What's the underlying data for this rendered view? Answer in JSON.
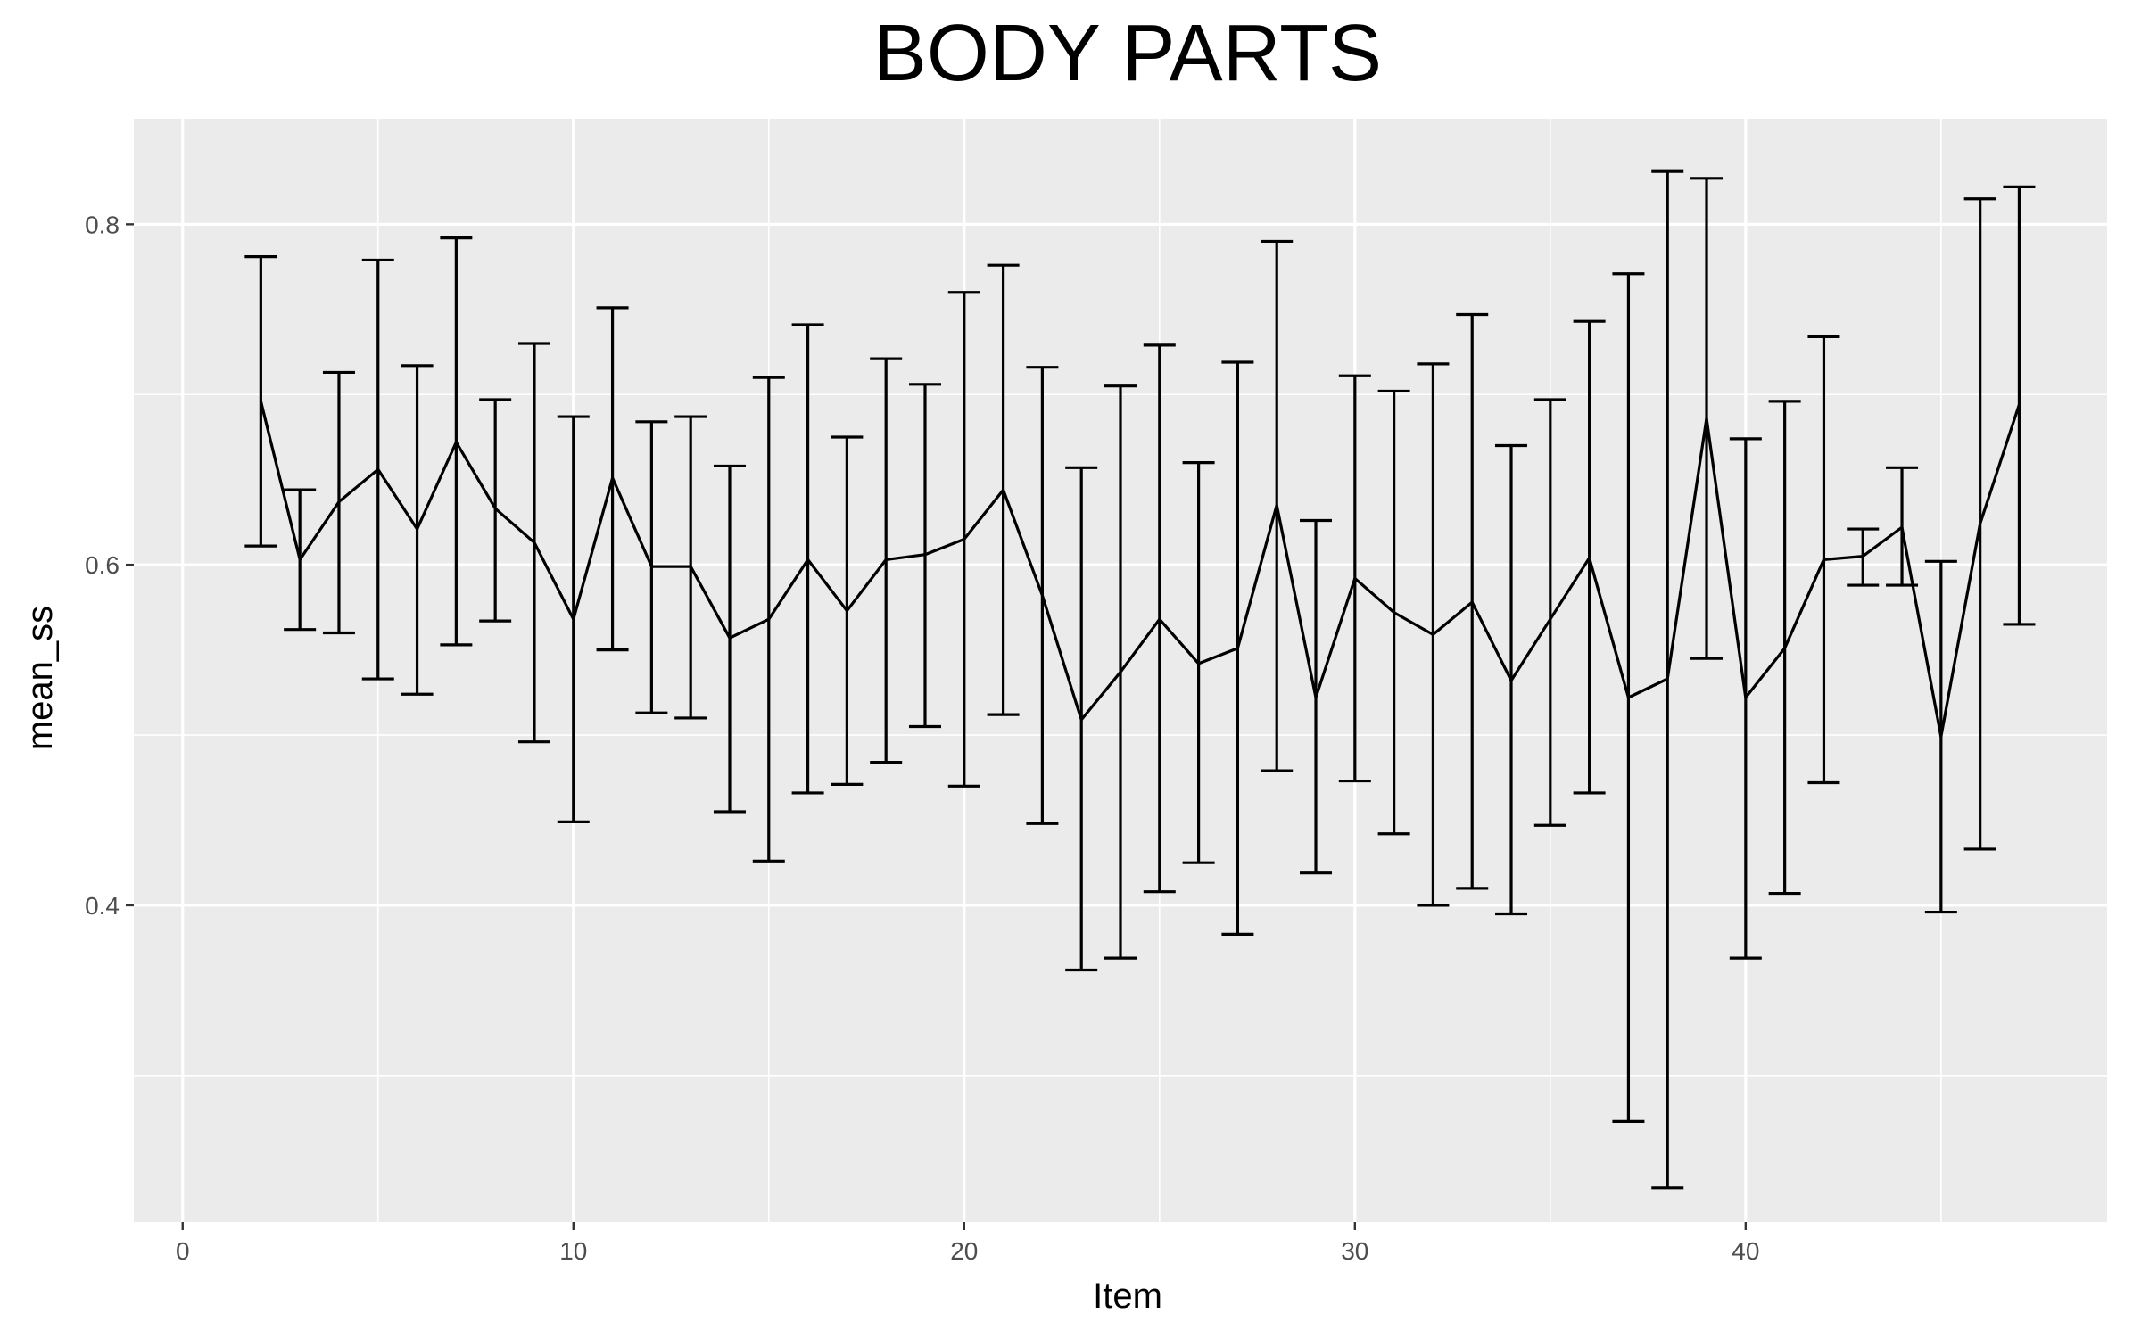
{
  "chart_data": {
    "type": "line",
    "title": "BODY PARTS",
    "xlabel": "Item",
    "ylabel": "mean_ss",
    "xlim": [
      -1.25,
      49.25
    ],
    "ylim": [
      0.214,
      0.862
    ],
    "x_ticks": [
      0,
      10,
      20,
      30,
      40
    ],
    "x_tick_labels": [
      "0",
      "10",
      "20",
      "30",
      "40"
    ],
    "y_ticks": [
      0.4,
      0.6,
      0.8
    ],
    "y_tick_labels": [
      "0.4",
      "0.6",
      "0.8"
    ],
    "y_minor_ticks": [
      0.3,
      0.5,
      0.7
    ],
    "grid": true,
    "legend": "none",
    "series": [
      {
        "x": [
          2,
          3,
          4,
          5,
          6,
          7,
          8,
          9,
          10,
          11,
          12,
          13,
          14,
          15,
          16,
          17,
          18,
          19,
          20,
          21,
          22,
          23,
          24,
          25,
          26,
          27,
          28,
          29,
          30,
          31,
          32,
          33,
          34,
          35,
          36,
          37,
          38,
          39,
          40,
          41,
          42,
          43,
          44,
          45,
          46,
          47
        ],
        "mean": [
          0.696,
          0.603,
          0.637,
          0.656,
          0.621,
          0.672,
          0.633,
          0.613,
          0.568,
          0.651,
          0.599,
          0.599,
          0.557,
          0.568,
          0.603,
          0.573,
          0.603,
          0.606,
          0.615,
          0.644,
          0.582,
          0.509,
          0.537,
          0.568,
          0.542,
          0.551,
          0.635,
          0.522,
          0.592,
          0.572,
          0.559,
          0.578,
          0.532,
          0.568,
          0.604,
          0.522,
          0.533,
          0.686,
          0.522,
          0.551,
          0.603,
          0.605,
          0.622,
          0.499,
          0.624,
          0.694
        ],
        "lower": [
          0.611,
          0.562,
          0.56,
          0.533,
          0.524,
          0.553,
          0.567,
          0.496,
          0.449,
          0.55,
          0.513,
          0.51,
          0.455,
          0.426,
          0.466,
          0.471,
          0.484,
          0.505,
          0.47,
          0.512,
          0.448,
          0.362,
          0.369,
          0.408,
          0.425,
          0.383,
          0.479,
          0.419,
          0.473,
          0.442,
          0.4,
          0.41,
          0.395,
          0.447,
          0.466,
          0.273,
          0.234,
          0.545,
          0.369,
          0.407,
          0.472,
          0.588,
          0.588,
          0.396,
          0.433,
          0.565
        ],
        "upper": [
          0.781,
          0.644,
          0.713,
          0.779,
          0.717,
          0.792,
          0.697,
          0.73,
          0.687,
          0.751,
          0.684,
          0.687,
          0.658,
          0.71,
          0.741,
          0.675,
          0.721,
          0.706,
          0.76,
          0.776,
          0.716,
          0.657,
          0.705,
          0.729,
          0.66,
          0.719,
          0.79,
          0.626,
          0.711,
          0.702,
          0.718,
          0.747,
          0.67,
          0.697,
          0.743,
          0.771,
          0.831,
          0.827,
          0.674,
          0.696,
          0.734,
          0.621,
          0.657,
          0.602,
          0.815,
          0.822
        ]
      }
    ]
  }
}
